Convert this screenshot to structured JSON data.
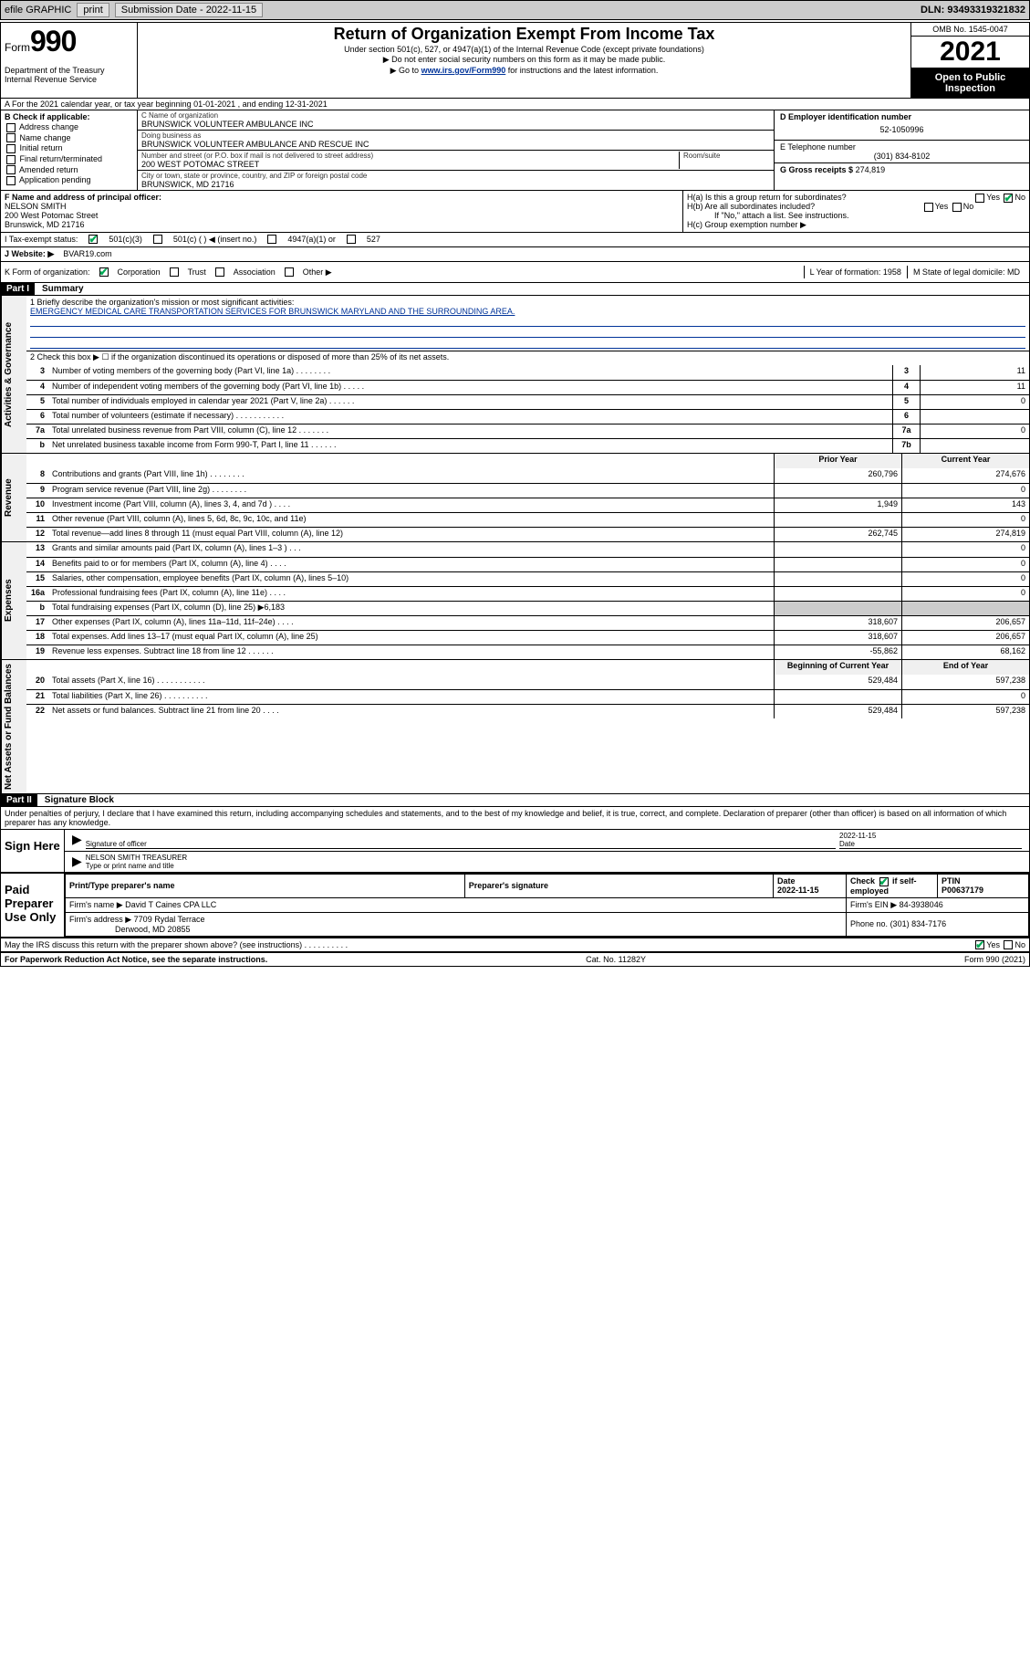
{
  "toolbar": {
    "efile": "efile GRAPHIC",
    "print": "print",
    "submission": "Submission Date - 2022-11-15",
    "dln": "DLN: 93493319321832"
  },
  "header": {
    "form_word": "Form",
    "form_num": "990",
    "dept": "Department of the Treasury\nInternal Revenue Service",
    "title": "Return of Organization Exempt From Income Tax",
    "subtitle": "Under section 501(c), 527, or 4947(a)(1) of the Internal Revenue Code (except private foundations)",
    "ssn_note": "▶ Do not enter social security numbers on this form as it may be made public.",
    "goto_pre": "▶ Go to ",
    "goto_link": "www.irs.gov/Form990",
    "goto_post": " for instructions and the latest information.",
    "omb": "OMB No. 1545-0047",
    "year": "2021",
    "inspection": "Open to Public Inspection"
  },
  "row_a": "A For the 2021 calendar year, or tax year beginning 01-01-2021    , and ending 12-31-2021",
  "col_b": {
    "title": "B Check if applicable:",
    "opts": [
      "Address change",
      "Name change",
      "Initial return",
      "Final return/terminated",
      "Amended return",
      "Application pending"
    ]
  },
  "col_c": {
    "name_label": "C Name of organization",
    "name": "BRUNSWICK VOLUNTEER AMBULANCE INC",
    "dba_label": "Doing business as",
    "dba": "BRUNSWICK VOLUNTEER AMBULANCE AND RESCUE INC",
    "street_label": "Number and street (or P.O. box if mail is not delivered to street address)",
    "street": "200 WEST POTOMAC STREET",
    "room_label": "Room/suite",
    "city_label": "City or town, state or province, country, and ZIP or foreign postal code",
    "city": "BRUNSWICK, MD  21716"
  },
  "col_d": {
    "label": "D Employer identification number",
    "value": "52-1050996"
  },
  "col_e": {
    "label": "E Telephone number",
    "value": "(301) 834-8102"
  },
  "col_g": {
    "label": "G Gross receipts $",
    "value": "274,819"
  },
  "col_f": {
    "label": "F  Name and address of principal officer:",
    "name": "NELSON SMITH",
    "street": "200 West Potomac Street",
    "city": "Brunswick, MD  21716"
  },
  "col_h": {
    "ha": "H(a)  Is this a group return for subordinates?",
    "hb": "H(b)  Are all subordinates included?",
    "hb_note": "If \"No,\" attach a list. See instructions.",
    "hc": "H(c)  Group exemption number ▶",
    "ha_no": true
  },
  "row_i": {
    "label": "I    Tax-exempt status:",
    "c3": "501(c)(3)",
    "c": "501(c) (   ) ◀ (insert no.)",
    "a1": "4947(a)(1) or",
    "s527": "527"
  },
  "row_j": {
    "label": "J    Website: ▶",
    "value": "BVAR19.com"
  },
  "row_k": {
    "label": "K Form of organization:",
    "opts": [
      "Corporation",
      "Trust",
      "Association",
      "Other ▶"
    ]
  },
  "row_l": {
    "label": "L Year of formation:",
    "value": "1958"
  },
  "row_m": {
    "label": "M State of legal domicile:",
    "value": "MD"
  },
  "part1": {
    "tag": "Part I",
    "title": "Summary"
  },
  "summary": {
    "mission_label": "1   Briefly describe the organization's mission or most significant activities:",
    "mission": "EMERGENCY MEDICAL CARE TRANSPORTATION SERVICES FOR BRUNSWICK MARYLAND AND THE SURROUNDING AREA.",
    "line2": "2   Check this box ▶ ☐  if the organization discontinued its operations or disposed of more than 25% of its net assets.",
    "tabs": {
      "governance": "Activities & Governance",
      "revenue": "Revenue",
      "expenses": "Expenses",
      "net": "Net Assets or Fund Balances"
    },
    "col_headers": {
      "prior": "Prior Year",
      "current": "Current Year",
      "begin": "Beginning of Current Year",
      "end": "End of Year"
    },
    "gov_lines": [
      {
        "n": "3",
        "t": "Number of voting members of the governing body (Part VI, line 1a)  .    .    .    .    .    .    .    .",
        "box": "3",
        "v": "11"
      },
      {
        "n": "4",
        "t": "Number of independent voting members of the governing body (Part VI, line 1b)  .    .    .    .    .",
        "box": "4",
        "v": "11"
      },
      {
        "n": "5",
        "t": "Total number of individuals employed in calendar year 2021 (Part V, line 2a)  .    .    .    .    .    .",
        "box": "5",
        "v": "0"
      },
      {
        "n": "6",
        "t": "Total number of volunteers (estimate if necessary)  .    .    .    .    .    .    .    .    .    .    .",
        "box": "6",
        "v": ""
      },
      {
        "n": "7a",
        "t": "Total unrelated business revenue from Part VIII, column (C), line 12  .    .    .    .    .    .    .",
        "box": "7a",
        "v": "0"
      },
      {
        "n": "b",
        "t": "Net unrelated business taxable income from Form 990-T, Part I, line 11  .    .    .    .    .    .",
        "box": "7b",
        "v": ""
      }
    ],
    "rev_lines": [
      {
        "n": "8",
        "t": "Contributions and grants (Part VIII, line 1h)  .    .    .    .    .    .    .    .",
        "p": "260,796",
        "c": "274,676"
      },
      {
        "n": "9",
        "t": "Program service revenue (Part VIII, line 2g)  .    .    .    .    .    .    .    .",
        "p": "",
        "c": "0"
      },
      {
        "n": "10",
        "t": "Investment income (Part VIII, column (A), lines 3, 4, and 7d )  .    .    .    .",
        "p": "1,949",
        "c": "143"
      },
      {
        "n": "11",
        "t": "Other revenue (Part VIII, column (A), lines 5, 6d, 8c, 9c, 10c, and 11e)",
        "p": "",
        "c": "0"
      },
      {
        "n": "12",
        "t": "Total revenue—add lines 8 through 11 (must equal Part VIII, column (A), line 12)",
        "p": "262,745",
        "c": "274,819"
      }
    ],
    "exp_lines": [
      {
        "n": "13",
        "t": "Grants and similar amounts paid (Part IX, column (A), lines 1–3 )  .    .    .",
        "p": "",
        "c": "0"
      },
      {
        "n": "14",
        "t": "Benefits paid to or for members (Part IX, column (A), line 4)  .    .    .    .",
        "p": "",
        "c": "0"
      },
      {
        "n": "15",
        "t": "Salaries, other compensation, employee benefits (Part IX, column (A), lines 5–10)",
        "p": "",
        "c": "0"
      },
      {
        "n": "16a",
        "t": "Professional fundraising fees (Part IX, column (A), line 11e)  .    .    .    .",
        "p": "",
        "c": "0"
      },
      {
        "n": "b",
        "t": "Total fundraising expenses (Part IX, column (D), line 25) ▶6,183",
        "shaded": true
      },
      {
        "n": "17",
        "t": "Other expenses (Part IX, column (A), lines 11a–11d, 11f–24e)  .    .    .    .",
        "p": "318,607",
        "c": "206,657"
      },
      {
        "n": "18",
        "t": "Total expenses. Add lines 13–17 (must equal Part IX, column (A), line 25)",
        "p": "318,607",
        "c": "206,657"
      },
      {
        "n": "19",
        "t": "Revenue less expenses. Subtract line 18 from line 12  .    .    .    .    .    .",
        "p": "-55,862",
        "c": "68,162"
      }
    ],
    "net_lines": [
      {
        "n": "20",
        "t": "Total assets (Part X, line 16)  .    .    .    .    .    .    .    .    .    .    .",
        "p": "529,484",
        "c": "597,238"
      },
      {
        "n": "21",
        "t": "Total liabilities (Part X, line 26)  .    .    .    .    .    .    .    .    .    .",
        "p": "",
        "c": "0"
      },
      {
        "n": "22",
        "t": "Net assets or fund balances. Subtract line 21 from line 20  .    .    .    .",
        "p": "529,484",
        "c": "597,238"
      }
    ]
  },
  "part2": {
    "tag": "Part II",
    "title": "Signature Block"
  },
  "sig": {
    "intro": "Under penalties of perjury, I declare that I have examined this return, including accompanying schedules and statements, and to the best of my knowledge and belief, it is true, correct, and complete. Declaration of preparer (other than officer) is based on all information of which preparer has any knowledge.",
    "sign_here": "Sign Here",
    "sig_officer": "Signature of officer",
    "date_label": "Date",
    "date": "2022-11-15",
    "name_title": "NELSON SMITH TREASURER",
    "name_title_label": "Type or print name and title",
    "paid": "Paid Preparer Use Only",
    "cols": [
      "Print/Type preparer's name",
      "Preparer's signature",
      "Date",
      "",
      "PTIN"
    ],
    "prep_date": "2022-11-15",
    "check_if": "Check ☑ if self-employed",
    "ptin": "P00637179",
    "firm_name_label": "Firm's name    ▶",
    "firm_name": "David T Caines CPA LLC",
    "firm_ein_label": "Firm's EIN ▶",
    "firm_ein": "84-3938046",
    "firm_addr_label": "Firm's address ▶",
    "firm_addr1": "7709 Rydal Terrace",
    "firm_addr2": "Derwood, MD  20855",
    "phone_label": "Phone no.",
    "phone": "(301) 834-7176",
    "discuss": "May the IRS discuss this return with the preparer shown above? (see instructions)  .    .    .    .    .    .    .    .    .    .",
    "discuss_yes": true
  },
  "footer": {
    "left": "For Paperwork Reduction Act Notice, see the separate instructions.",
    "mid": "Cat. No. 11282Y",
    "right": "Form 990 (2021)"
  }
}
